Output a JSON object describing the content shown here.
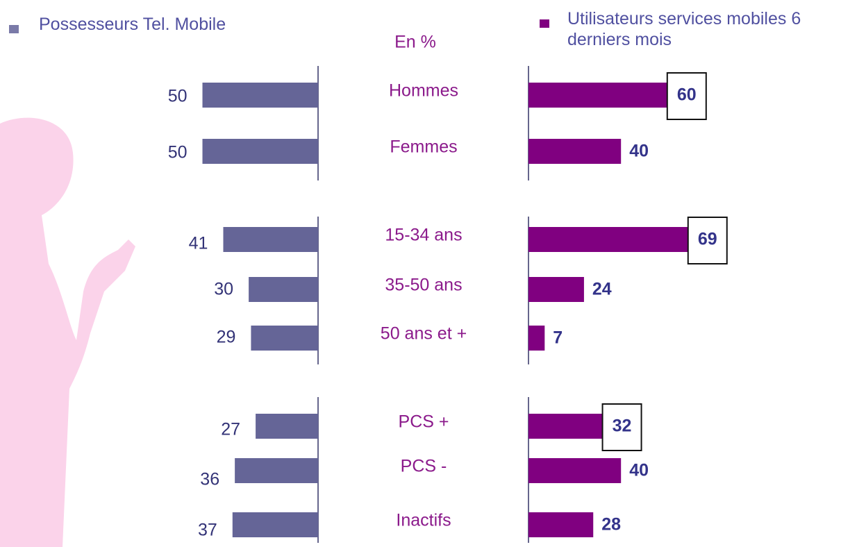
{
  "chart_data": {
    "type": "butterfly-bar",
    "subtitle": "En %",
    "categories": [
      "Hommes",
      "Femmes",
      "15-34 ans",
      "35-50 ans",
      "50 ans et +",
      "PCS +",
      "PCS -",
      "Inactifs"
    ],
    "series": [
      {
        "name": "Possesseurs Tel. Mobile",
        "color": "#656597",
        "values": [
          50,
          50,
          41,
          30,
          29,
          27,
          36,
          37
        ]
      },
      {
        "name": "Utilisateurs services mobiles 6 derniers mois",
        "color": "#800080",
        "values": [
          60,
          40,
          69,
          24,
          7,
          32,
          40,
          28
        ],
        "boxed": [
          true,
          false,
          true,
          false,
          false,
          true,
          false,
          false
        ]
      }
    ]
  }
}
